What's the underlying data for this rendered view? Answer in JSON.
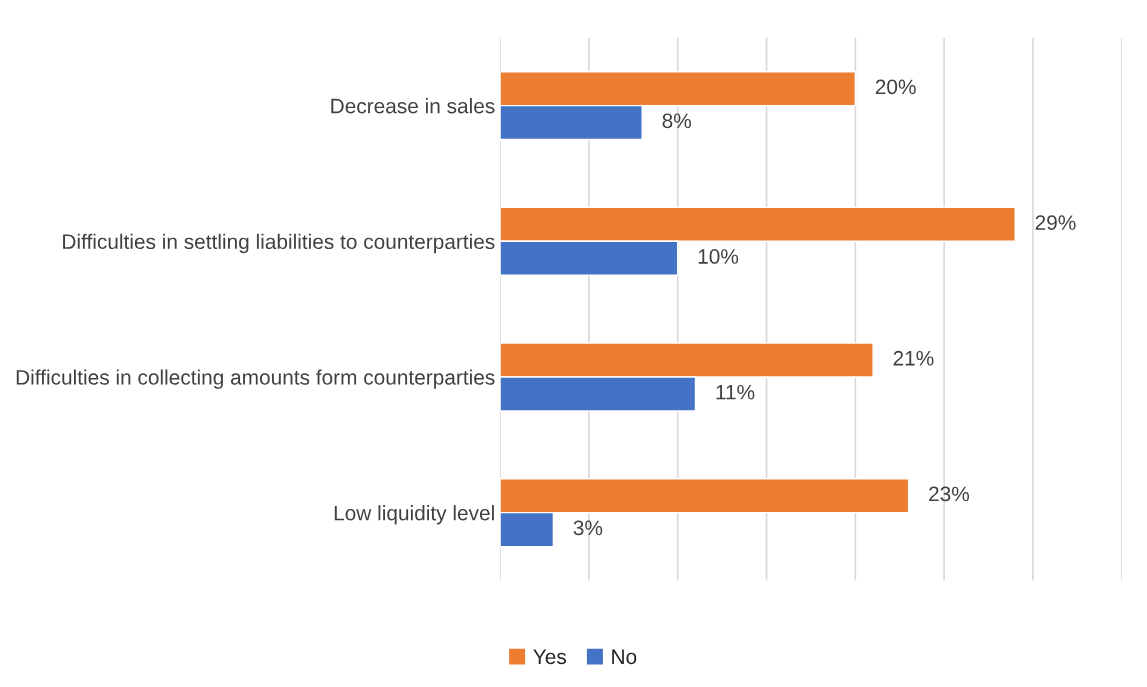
{
  "chart_data": {
    "type": "bar",
    "orientation": "horizontal",
    "categories": [
      "Decrease in sales",
      "Difficulties in settling liabilities to counterparties",
      "Difficulties in collecting amounts form counterparties",
      "Low liquidity level"
    ],
    "series": [
      {
        "name": "Yes",
        "color": "#ed7d31",
        "values": [
          20,
          29,
          21,
          23
        ],
        "value_labels": [
          "20%",
          "29%",
          "21%",
          "23%"
        ]
      },
      {
        "name": "No",
        "color": "#4472c4",
        "values": [
          8,
          10,
          11,
          3
        ],
        "value_labels": [
          "8%",
          "10%",
          "11%",
          "3%"
        ]
      }
    ],
    "xlim": [
      0,
      35
    ],
    "xticks": [
      {
        "value": 0,
        "label": null
      },
      {
        "value": 5,
        "label": null
      },
      {
        "value": 10,
        "label": null
      },
      {
        "value": 15,
        "label": null
      },
      {
        "value": 20,
        "label": null
      },
      {
        "value": 25,
        "label": null
      },
      {
        "value": 30,
        "label": null
      },
      {
        "value": 35,
        "label": null
      }
    ],
    "tick_labels": "y",
    "grid": "x",
    "legend": "bottom"
  }
}
